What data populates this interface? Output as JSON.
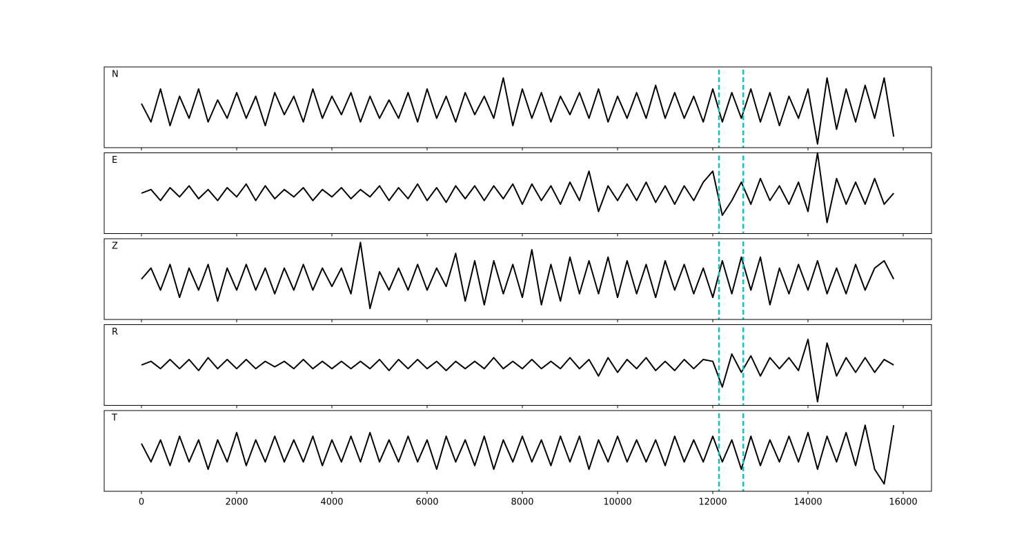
{
  "chart_data": {
    "type": "line",
    "layout": "stacked",
    "x": [
      0,
      200,
      400,
      600,
      800,
      1000,
      1200,
      1400,
      1600,
      1800,
      2000,
      2200,
      2400,
      2600,
      2800,
      3000,
      3200,
      3400,
      3600,
      3800,
      4000,
      4200,
      4400,
      4600,
      4800,
      5000,
      5200,
      5400,
      5600,
      5800,
      6000,
      6200,
      6400,
      6600,
      6800,
      7000,
      7200,
      7400,
      7600,
      7800,
      8000,
      8200,
      8400,
      8600,
      8800,
      9000,
      9200,
      9400,
      9600,
      9800,
      10000,
      10200,
      10400,
      10600,
      10800,
      11000,
      11200,
      11400,
      11600,
      11800,
      12000,
      12200,
      12400,
      12600,
      12800,
      13000,
      13200,
      13400,
      13600,
      13800,
      14000,
      14200,
      14400,
      14600,
      14800,
      15000,
      15200,
      15400,
      15600,
      15800
    ],
    "xlim": [
      -783,
      16594
    ],
    "xticks": [
      0,
      2000,
      4000,
      6000,
      8000,
      10000,
      12000,
      14000,
      16000
    ],
    "ylim": [
      -1.1,
      1.1
    ],
    "series": [
      {
        "name": "N",
        "color": "#000000",
        "values": [
          0.1,
          -0.4,
          0.5,
          -0.5,
          0.3,
          -0.3,
          0.5,
          -0.4,
          0.2,
          -0.3,
          0.4,
          -0.3,
          0.3,
          -0.5,
          0.4,
          -0.2,
          0.3,
          -0.4,
          0.5,
          -0.3,
          0.3,
          -0.2,
          0.4,
          -0.4,
          0.3,
          -0.3,
          0.2,
          -0.3,
          0.4,
          -0.4,
          0.5,
          -0.3,
          0.3,
          -0.4,
          0.4,
          -0.2,
          0.3,
          -0.3,
          0.8,
          -0.5,
          0.5,
          -0.3,
          0.4,
          -0.4,
          0.3,
          -0.2,
          0.4,
          -0.3,
          0.5,
          -0.4,
          0.3,
          -0.3,
          0.4,
          -0.3,
          0.6,
          -0.3,
          0.4,
          -0.3,
          0.3,
          -0.4,
          0.5,
          -0.4,
          0.4,
          -0.3,
          0.5,
          -0.4,
          0.4,
          -0.5,
          0.3,
          -0.3,
          0.5,
          -1.0,
          0.8,
          -0.6,
          0.5,
          -0.4,
          0.6,
          -0.3,
          0.8,
          -0.8
        ]
      },
      {
        "name": "E",
        "color": "#000000",
        "values": [
          0.0,
          0.1,
          -0.2,
          0.15,
          -0.1,
          0.2,
          -0.15,
          0.1,
          -0.2,
          0.15,
          -0.1,
          0.25,
          -0.2,
          0.2,
          -0.15,
          0.1,
          -0.1,
          0.15,
          -0.2,
          0.1,
          -0.1,
          0.15,
          -0.15,
          0.1,
          -0.1,
          0.2,
          -0.2,
          0.15,
          -0.15,
          0.25,
          -0.2,
          0.15,
          -0.25,
          0.2,
          -0.15,
          0.2,
          -0.2,
          0.2,
          -0.15,
          0.25,
          -0.3,
          0.25,
          -0.2,
          0.2,
          -0.3,
          0.3,
          -0.2,
          0.6,
          -0.5,
          0.2,
          -0.2,
          0.25,
          -0.2,
          0.3,
          -0.25,
          0.2,
          -0.3,
          0.2,
          -0.2,
          0.3,
          0.6,
          -0.6,
          -0.2,
          0.3,
          -0.3,
          0.4,
          -0.2,
          0.2,
          -0.3,
          0.3,
          -0.5,
          1.1,
          -0.8,
          0.4,
          -0.3,
          0.3,
          -0.3,
          0.4,
          -0.3,
          0.0
        ]
      },
      {
        "name": "Z",
        "color": "#000000",
        "values": [
          0.0,
          0.3,
          -0.3,
          0.4,
          -0.5,
          0.3,
          -0.3,
          0.4,
          -0.6,
          0.3,
          -0.3,
          0.4,
          -0.3,
          0.3,
          -0.4,
          0.3,
          -0.3,
          0.4,
          -0.3,
          0.3,
          -0.2,
          0.3,
          -0.4,
          1.0,
          -0.8,
          0.2,
          -0.3,
          0.3,
          -0.3,
          0.4,
          -0.3,
          0.3,
          -0.2,
          0.7,
          -0.6,
          0.5,
          -0.7,
          0.5,
          -0.4,
          0.4,
          -0.5,
          0.8,
          -0.7,
          0.4,
          -0.6,
          0.6,
          -0.4,
          0.5,
          -0.4,
          0.6,
          -0.5,
          0.5,
          -0.4,
          0.4,
          -0.5,
          0.5,
          -0.3,
          0.4,
          -0.4,
          0.3,
          -0.5,
          0.5,
          -0.4,
          0.6,
          -0.3,
          0.6,
          -0.7,
          0.3,
          -0.4,
          0.4,
          -0.3,
          0.5,
          -0.4,
          0.3,
          -0.4,
          0.4,
          -0.3,
          0.3,
          0.5,
          0.0
        ]
      },
      {
        "name": "R",
        "color": "#000000",
        "values": [
          0.0,
          0.1,
          -0.1,
          0.15,
          -0.1,
          0.15,
          -0.15,
          0.2,
          -0.1,
          0.15,
          -0.1,
          0.15,
          -0.1,
          0.1,
          -0.05,
          0.1,
          -0.1,
          0.15,
          -0.1,
          0.1,
          -0.1,
          0.1,
          -0.1,
          0.1,
          -0.1,
          0.15,
          -0.15,
          0.15,
          -0.1,
          0.15,
          -0.1,
          0.1,
          -0.15,
          0.1,
          -0.1,
          0.1,
          -0.1,
          0.2,
          -0.1,
          0.1,
          -0.1,
          0.15,
          -0.1,
          0.1,
          -0.1,
          0.2,
          -0.1,
          0.15,
          -0.3,
          0.2,
          -0.2,
          0.15,
          -0.1,
          0.2,
          -0.15,
          0.1,
          -0.15,
          0.15,
          -0.1,
          0.15,
          0.1,
          -0.6,
          0.3,
          -0.2,
          0.25,
          -0.3,
          0.2,
          -0.1,
          0.2,
          -0.15,
          0.7,
          -1.0,
          0.6,
          -0.3,
          0.2,
          -0.2,
          0.2,
          -0.2,
          0.15,
          0.0
        ]
      },
      {
        "name": "T",
        "color": "#000000",
        "values": [
          0.2,
          -0.3,
          0.3,
          -0.4,
          0.4,
          -0.3,
          0.3,
          -0.5,
          0.3,
          -0.3,
          0.5,
          -0.4,
          0.3,
          -0.3,
          0.4,
          -0.3,
          0.3,
          -0.3,
          0.4,
          -0.4,
          0.3,
          -0.3,
          0.4,
          -0.3,
          0.5,
          -0.3,
          0.3,
          -0.3,
          0.4,
          -0.3,
          0.3,
          -0.5,
          0.4,
          -0.3,
          0.3,
          -0.4,
          0.4,
          -0.5,
          0.3,
          -0.3,
          0.4,
          -0.3,
          0.3,
          -0.4,
          0.4,
          -0.3,
          0.4,
          -0.5,
          0.3,
          -0.3,
          0.4,
          -0.3,
          0.3,
          -0.3,
          0.3,
          -0.4,
          0.4,
          -0.3,
          0.3,
          -0.3,
          0.4,
          -0.3,
          0.3,
          -0.5,
          0.4,
          -0.4,
          0.3,
          -0.3,
          0.4,
          -0.3,
          0.5,
          -0.5,
          0.4,
          -0.3,
          0.5,
          -0.4,
          0.7,
          -0.5,
          -0.9,
          0.7
        ]
      }
    ],
    "vlines": {
      "color": "#17bebb",
      "values": [
        12130,
        12640
      ]
    }
  }
}
